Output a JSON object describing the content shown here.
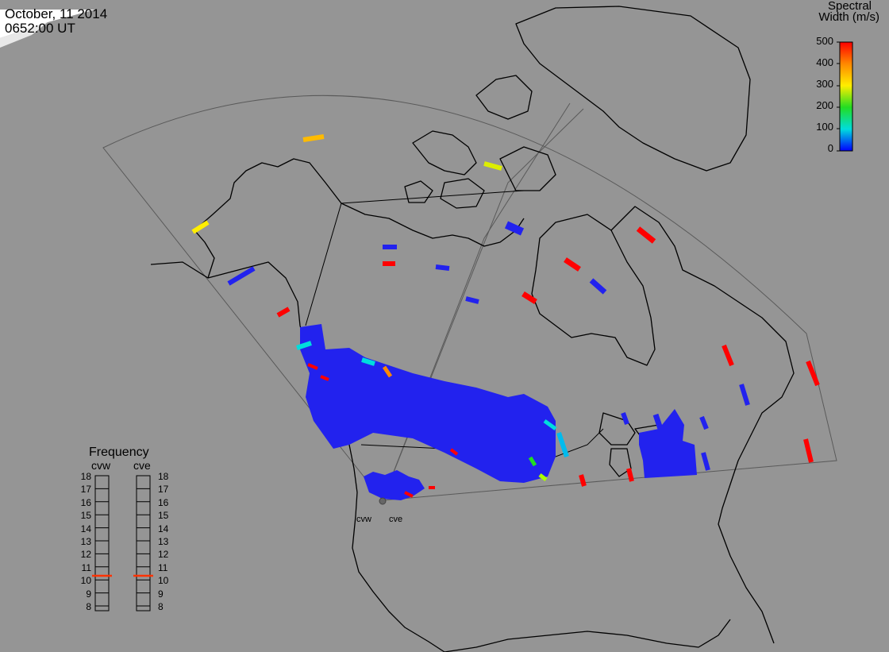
{
  "header": {
    "date": "October, 11 2014",
    "time": "0652:00 UT"
  },
  "colorbar": {
    "title_line1": "Spectral",
    "title_line2": "Width (m/s)",
    "ticks": [
      "500",
      "400",
      "300",
      "200",
      "100",
      "0"
    ],
    "colors": [
      "#ff0000",
      "#ff8800",
      "#ffee00",
      "#22dd22",
      "#00dddd",
      "#0000ff"
    ]
  },
  "frequency_panel": {
    "title": "Frequency",
    "left_label": "cvw",
    "right_label": "cve",
    "scale": [
      "18",
      "17",
      "16",
      "15",
      "14",
      "13",
      "12",
      "11",
      "10",
      "9",
      "8"
    ],
    "cvw_value_mhz": 10.5,
    "cve_value_mhz": 10.5,
    "marker_color": "#ff3300"
  },
  "sites": {
    "west": "cvw",
    "east": "cve"
  },
  "colors": {
    "background": "#959595",
    "coastline": "#000000",
    "fov_outline": "#5a5a5a",
    "dominant_echo": "#2222ee"
  }
}
